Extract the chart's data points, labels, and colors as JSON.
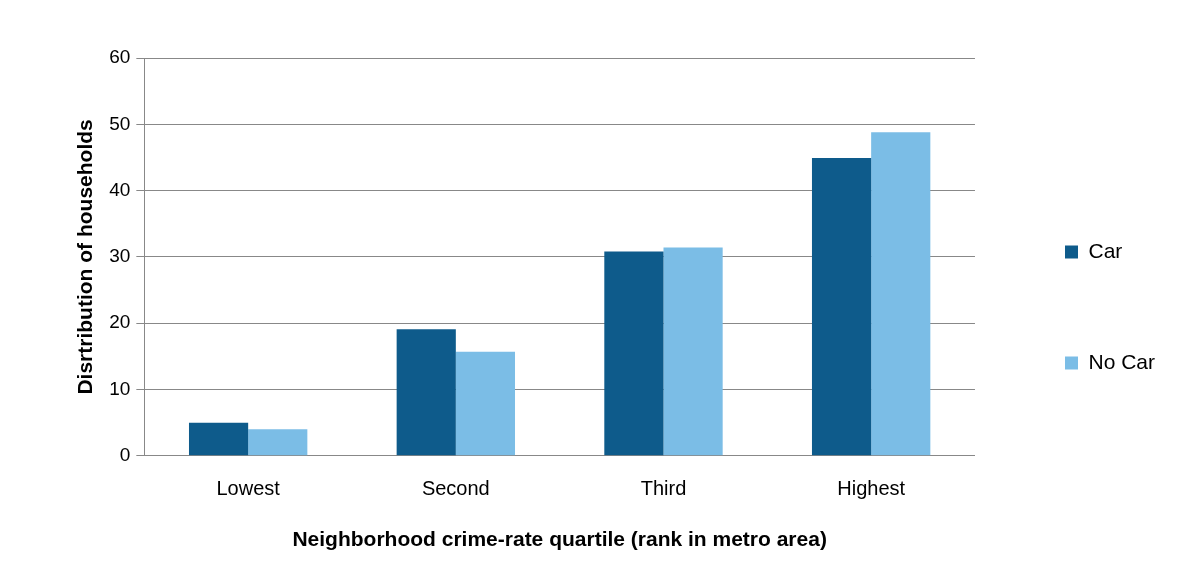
{
  "chart_data": {
    "type": "bar",
    "xlabel": "Neighborhood crime-rate quartile (rank in metro area)",
    "ylabel": "Disrtribution of households",
    "categories": [
      "Lowest",
      "Second",
      "Third",
      "Highest"
    ],
    "series": [
      {
        "name": "Car",
        "color": "#0e5b8b",
        "values": [
          5,
          19.1,
          30.8,
          44.9
        ]
      },
      {
        "name": "No Car",
        "color": "#7bbde6",
        "values": [
          4,
          15.7,
          31.4,
          48.8
        ]
      }
    ],
    "ylim": [
      0,
      60
    ],
    "yticks": [
      0,
      10,
      20,
      30,
      40,
      50,
      60
    ],
    "grid": "y",
    "legend": "right"
  }
}
